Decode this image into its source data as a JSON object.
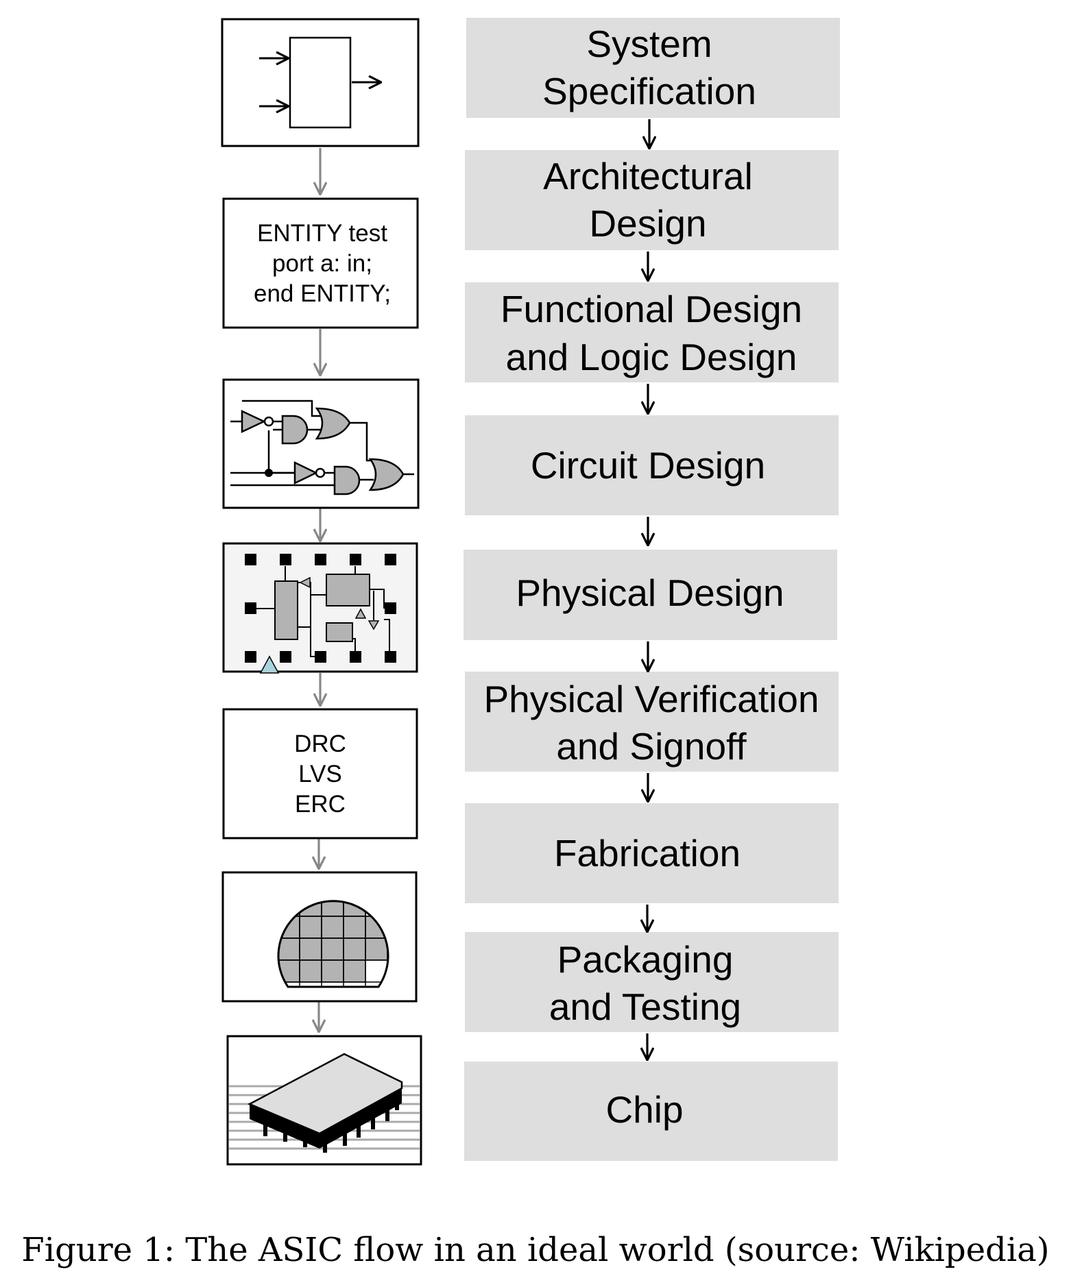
{
  "stages": [
    {
      "lines": [
        "System",
        "Specification"
      ]
    },
    {
      "lines": [
        "Architectural",
        "Design"
      ]
    },
    {
      "lines": [
        "Functional Design",
        "and Logic Design"
      ]
    },
    {
      "lines": [
        "Circuit Design"
      ]
    },
    {
      "lines": [
        "Physical Design"
      ]
    },
    {
      "lines": [
        "Physical Verification",
        "and Signoff"
      ]
    },
    {
      "lines": [
        "Fabrication"
      ]
    },
    {
      "lines": [
        "Packaging",
        "and Testing"
      ]
    },
    {
      "lines": [
        "Chip"
      ]
    }
  ],
  "illustrations": {
    "vhdl_code": [
      "ENTITY test",
      "port a: in;",
      "end ENTITY;"
    ],
    "checks": [
      "DRC",
      "LVS",
      "ERC"
    ]
  },
  "caption": "Figure 1: The ASIC flow in an ideal world (source: Wikipedia)",
  "colors": {
    "stage_fill": "#dedede",
    "gray_arrow": "#888888",
    "black_arrow": "#000000",
    "gate_fill": "#b3b3b3",
    "layout_bg": "#f4f4f4",
    "pin_fill": "#a9d3dc"
  }
}
